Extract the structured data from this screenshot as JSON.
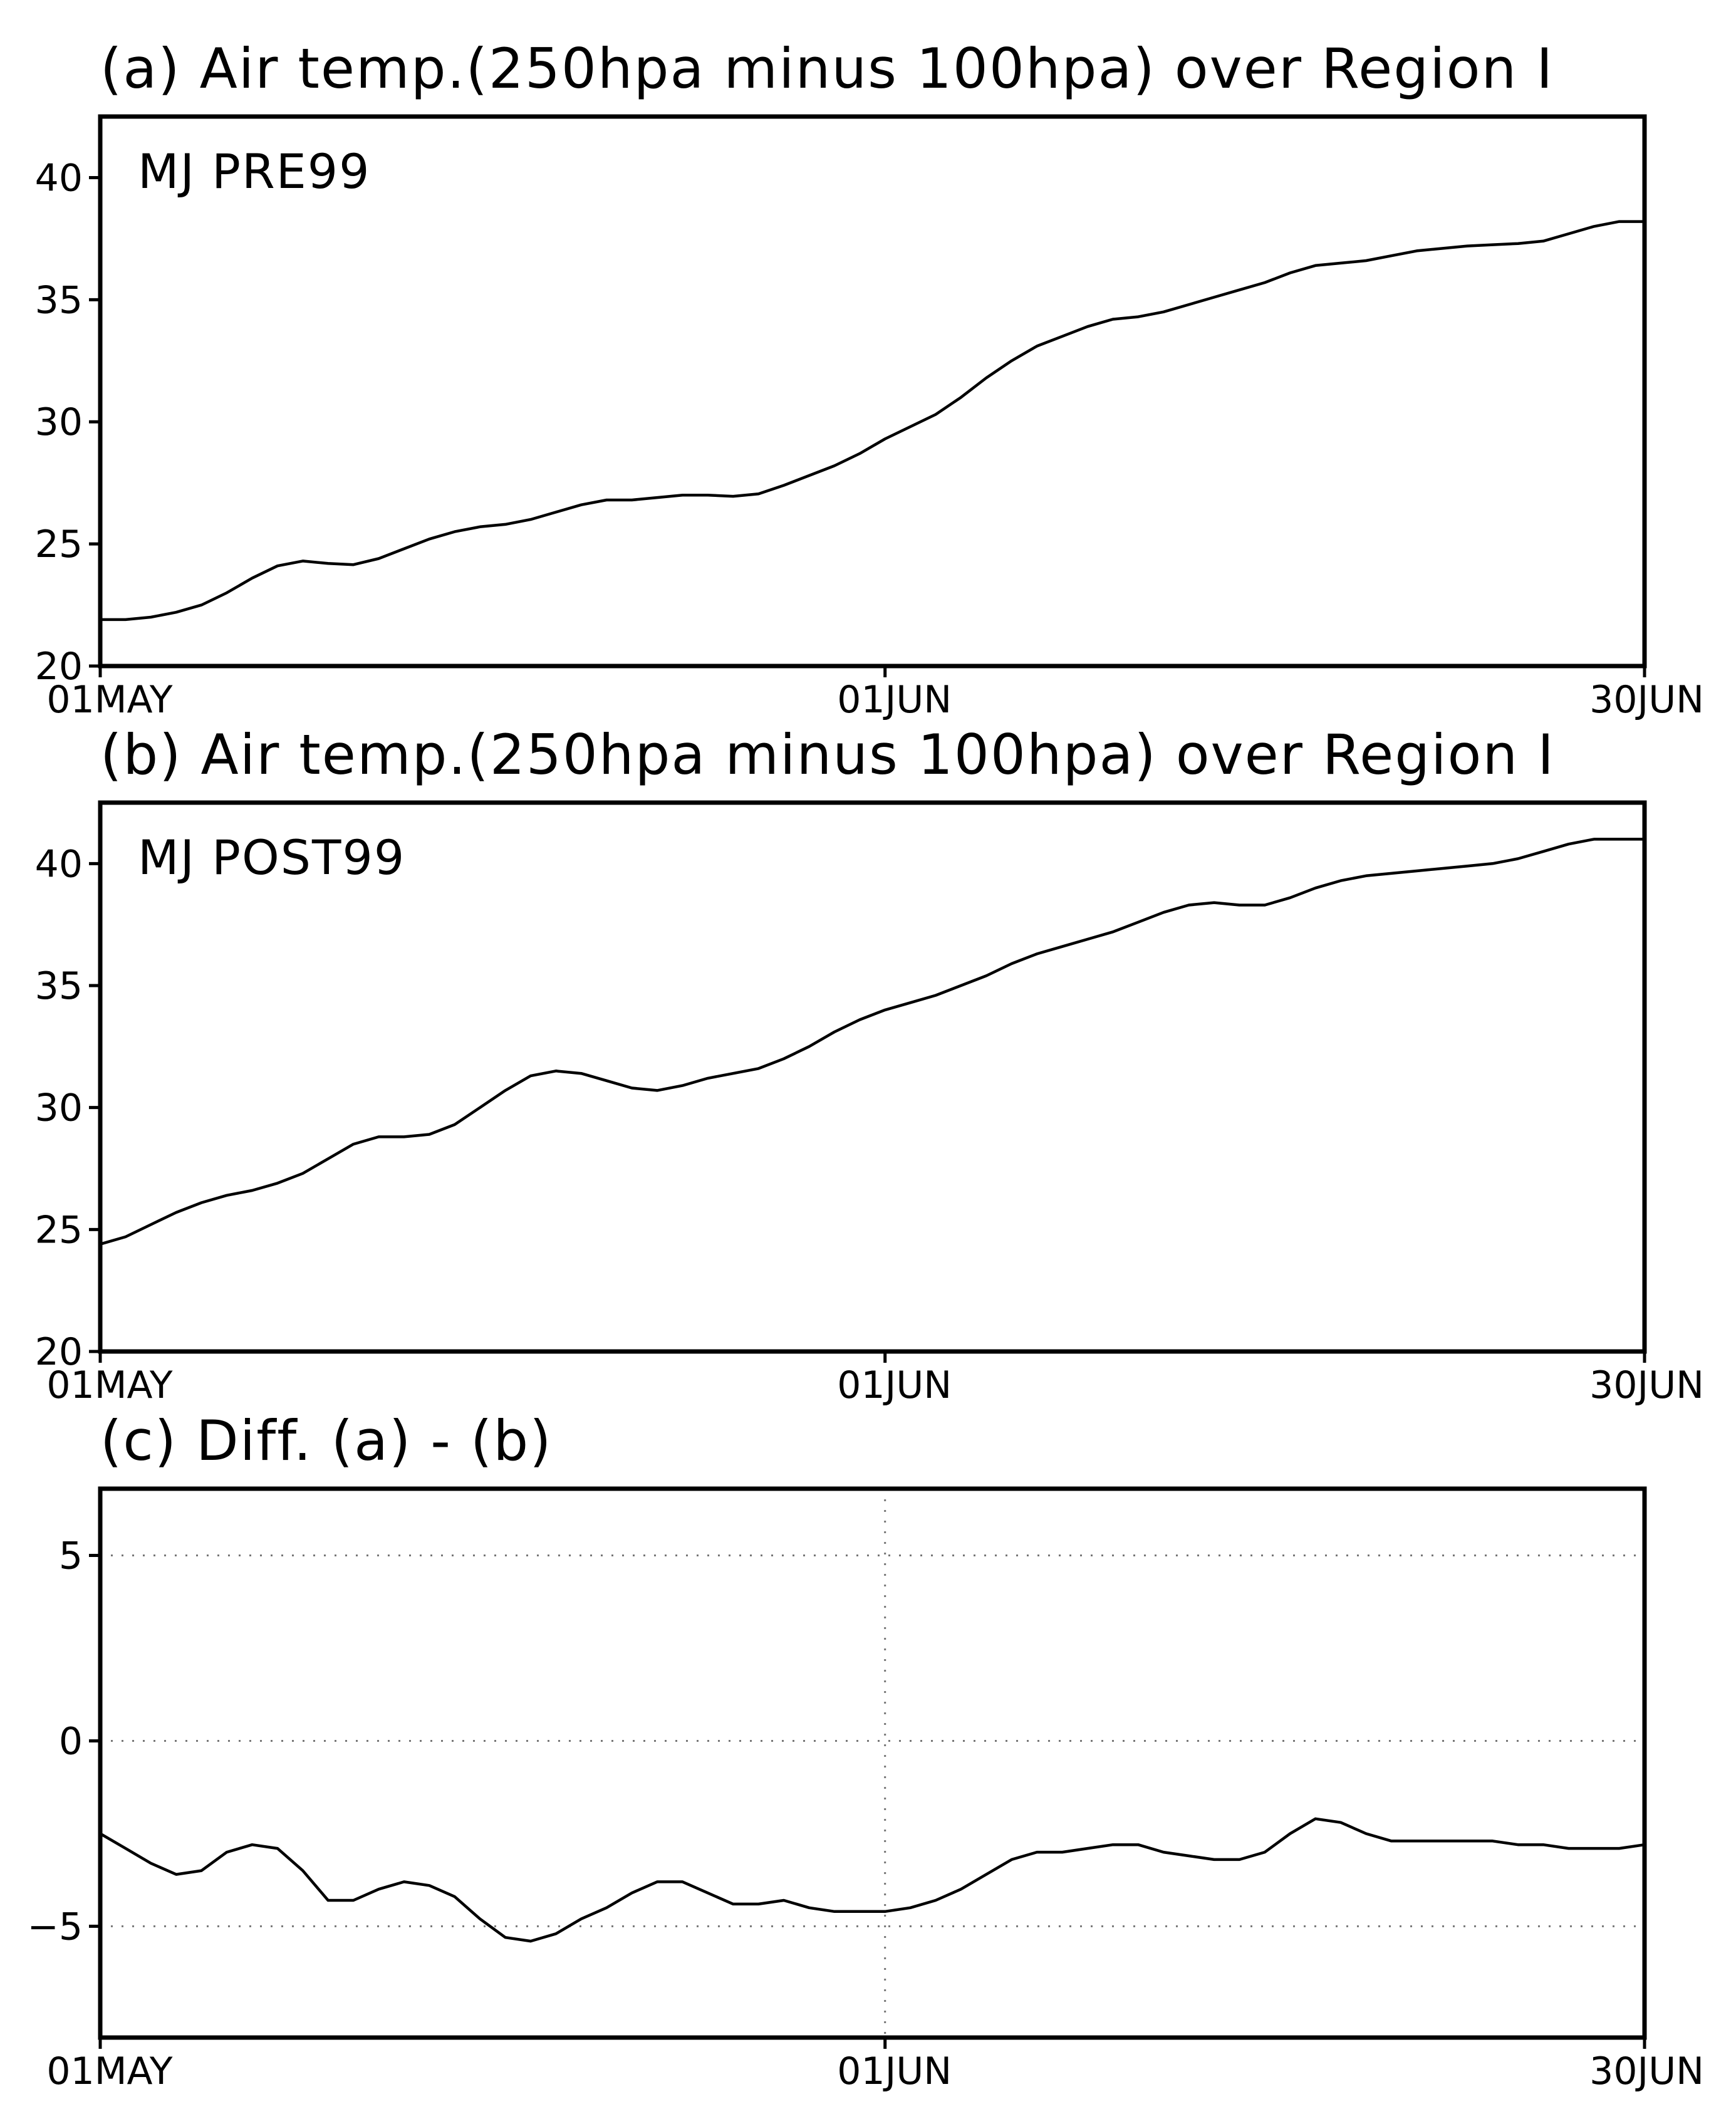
{
  "chart_data": [
    {
      "type": "line",
      "title": "(a) Air temp.(250hpa minus 100hpa) over Region I",
      "label": "MJ PRE99",
      "xlabel": "",
      "ylabel": "",
      "x_ticks": [
        "01MAY",
        "01JUN",
        "30JUN"
      ],
      "x_tick_days": [
        0,
        31,
        61
      ],
      "xlim": [
        0,
        61
      ],
      "ylim": [
        20,
        42.5
      ],
      "y_ticks": [
        20,
        25,
        30,
        35,
        40
      ],
      "grid": false,
      "series": [
        {
          "name": "MJ PRE99",
          "x": [
            0,
            1,
            2,
            3,
            4,
            5,
            6,
            7,
            8,
            9,
            10,
            11,
            12,
            13,
            14,
            15,
            16,
            17,
            18,
            19,
            20,
            21,
            22,
            23,
            24,
            25,
            26,
            27,
            28,
            29,
            30,
            31,
            32,
            33,
            34,
            35,
            36,
            37,
            38,
            39,
            40,
            41,
            42,
            43,
            44,
            45,
            46,
            47,
            48,
            49,
            50,
            51,
            52,
            53,
            54,
            55,
            56,
            57,
            58,
            59,
            60,
            61
          ],
          "values": [
            21.9,
            21.9,
            22.0,
            22.2,
            22.5,
            23.0,
            23.6,
            24.1,
            24.3,
            24.2,
            24.15,
            24.4,
            24.8,
            25.2,
            25.5,
            25.7,
            25.8,
            26.0,
            26.3,
            26.6,
            26.8,
            26.8,
            26.9,
            27.0,
            27.0,
            26.95,
            27.05,
            27.4,
            27.8,
            28.2,
            28.7,
            29.3,
            29.8,
            30.3,
            31.0,
            31.8,
            32.5,
            33.1,
            33.5,
            33.9,
            34.2,
            34.3,
            34.5,
            34.8,
            35.1,
            35.4,
            35.7,
            36.1,
            36.4,
            36.5,
            36.6,
            36.8,
            37.0,
            37.1,
            37.2,
            37.25,
            37.3,
            37.4,
            37.7,
            38.0,
            38.2,
            38.2
          ]
        }
      ]
    },
    {
      "type": "line",
      "title": "(b) Air temp.(250hpa minus 100hpa) over Region I",
      "label": "MJ POST99",
      "xlabel": "",
      "ylabel": "",
      "x_ticks": [
        "01MAY",
        "01JUN",
        "30JUN"
      ],
      "x_tick_days": [
        0,
        31,
        61
      ],
      "xlim": [
        0,
        61
      ],
      "ylim": [
        20,
        42.5
      ],
      "y_ticks": [
        20,
        25,
        30,
        35,
        40
      ],
      "grid": false,
      "series": [
        {
          "name": "MJ POST99",
          "x": [
            0,
            1,
            2,
            3,
            4,
            5,
            6,
            7,
            8,
            9,
            10,
            11,
            12,
            13,
            14,
            15,
            16,
            17,
            18,
            19,
            20,
            21,
            22,
            23,
            24,
            25,
            26,
            27,
            28,
            29,
            30,
            31,
            32,
            33,
            34,
            35,
            36,
            37,
            38,
            39,
            40,
            41,
            42,
            43,
            44,
            45,
            46,
            47,
            48,
            49,
            50,
            51,
            52,
            53,
            54,
            55,
            56,
            57,
            58,
            59,
            60,
            61
          ],
          "values": [
            24.4,
            24.7,
            25.2,
            25.7,
            26.1,
            26.4,
            26.6,
            26.9,
            27.3,
            27.9,
            28.5,
            28.8,
            28.8,
            28.9,
            29.3,
            30.0,
            30.7,
            31.3,
            31.5,
            31.4,
            31.1,
            30.8,
            30.7,
            30.9,
            31.2,
            31.4,
            31.6,
            32.0,
            32.5,
            33.1,
            33.6,
            34.0,
            34.3,
            34.6,
            35.0,
            35.4,
            35.9,
            36.3,
            36.6,
            36.9,
            37.2,
            37.6,
            38.0,
            38.3,
            38.4,
            38.3,
            38.3,
            38.6,
            39.0,
            39.3,
            39.5,
            39.6,
            39.7,
            39.8,
            39.9,
            40.0,
            40.2,
            40.5,
            40.8,
            41.0,
            41.0,
            41.0
          ]
        }
      ]
    },
    {
      "type": "line",
      "title": "(c) Diff. (a) - (b)",
      "xlabel": "",
      "ylabel": "",
      "x_ticks": [
        "01MAY",
        "01JUN",
        "30JUN"
      ],
      "x_tick_days": [
        0,
        31,
        61
      ],
      "xlim": [
        0,
        61
      ],
      "ylim": [
        -8,
        6.8
      ],
      "y_ticks": [
        -5,
        0,
        5
      ],
      "grid": true,
      "grid_y": [
        -5,
        0,
        5
      ],
      "grid_x": [
        31
      ],
      "series": [
        {
          "name": "Diff",
          "x": [
            0,
            1,
            2,
            3,
            4,
            5,
            6,
            7,
            8,
            9,
            10,
            11,
            12,
            13,
            14,
            15,
            16,
            17,
            18,
            19,
            20,
            21,
            22,
            23,
            24,
            25,
            26,
            27,
            28,
            29,
            30,
            31,
            32,
            33,
            34,
            35,
            36,
            37,
            38,
            39,
            40,
            41,
            42,
            43,
            44,
            45,
            46,
            47,
            48,
            49,
            50,
            51,
            52,
            53,
            54,
            55,
            56,
            57,
            58,
            59,
            60,
            61
          ],
          "values": [
            -2.5,
            -2.9,
            -3.3,
            -3.6,
            -3.5,
            -3.0,
            -2.8,
            -2.9,
            -3.5,
            -4.3,
            -4.3,
            -4.0,
            -3.8,
            -3.9,
            -4.2,
            -4.8,
            -5.3,
            -5.4,
            -5.2,
            -4.8,
            -4.5,
            -4.1,
            -3.8,
            -3.8,
            -4.1,
            -4.4,
            -4.4,
            -4.3,
            -4.5,
            -4.6,
            -4.6,
            -4.6,
            -4.5,
            -4.3,
            -4.0,
            -3.6,
            -3.2,
            -3.0,
            -3.0,
            -2.9,
            -2.8,
            -2.8,
            -3.0,
            -3.1,
            -3.2,
            -3.2,
            -3.0,
            -2.5,
            -2.1,
            -2.2,
            -2.5,
            -2.7,
            -2.7,
            -2.7,
            -2.7,
            -2.7,
            -2.8,
            -2.8,
            -2.9,
            -2.9,
            -2.9,
            -2.8
          ]
        }
      ]
    }
  ]
}
